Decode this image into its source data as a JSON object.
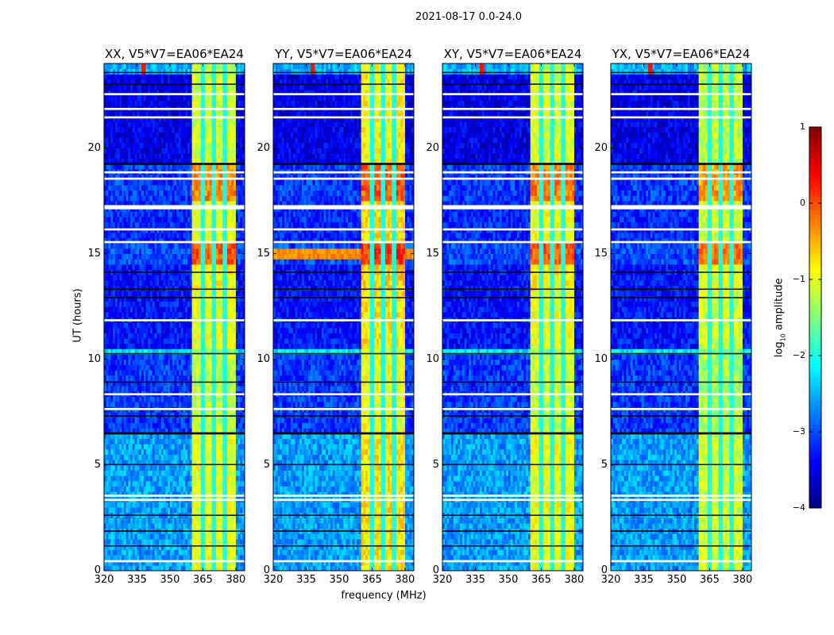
{
  "suptitle": "2021-08-17 0.0-24.0",
  "chart_data": {
    "type": "heatmap",
    "title": "2021-08-17 0.0-24.0",
    "xlabel": "frequency (MHz)",
    "ylabel": "UT (hours)",
    "xlim": [
      320,
      384
    ],
    "ylim": [
      0,
      24
    ],
    "xticks": [
      "320",
      "335",
      "350",
      "365",
      "380"
    ],
    "yticks": [
      "0",
      "5",
      "10",
      "15",
      "20"
    ],
    "xtick_values": [
      320,
      335,
      350,
      365,
      380
    ],
    "ytick_values": [
      0,
      5,
      10,
      15,
      20
    ],
    "colormap": "jet",
    "colorbar": {
      "label": "log10 amplitude",
      "label_main": "log",
      "label_sub": "10",
      "label_rest": " amplitude",
      "range": [
        -4,
        1
      ],
      "ticks": [
        "1",
        "0",
        "−1",
        "−2",
        "−3",
        "−4"
      ],
      "tick_values": [
        1,
        0,
        -1,
        -2,
        -3,
        -4
      ]
    },
    "band": {
      "f0": 360.4,
      "f1": 379.6,
      "dividers_mhz": [
        365,
        370,
        375
      ],
      "divider_level": -2.0
    },
    "segments_ut_bg_band": [
      [
        0,
        6.5,
        -2.6,
        -1.0
      ],
      [
        6.5,
        10.3,
        -3.1,
        -1.2
      ],
      [
        10.3,
        10.6,
        -2.2,
        -1.4
      ],
      [
        10.6,
        13.3,
        -3.3,
        -1.0
      ],
      [
        13.3,
        14.6,
        -3.3,
        -0.9
      ],
      [
        14.6,
        15.6,
        -3.0,
        -0.1
      ],
      [
        15.6,
        17.5,
        -3.2,
        -1.0
      ],
      [
        17.5,
        19.2,
        -3.1,
        -0.3
      ],
      [
        19.2,
        23.6,
        -3.5,
        -1.1
      ],
      [
        23.6,
        24,
        -2.5,
        -1.2
      ]
    ],
    "flagged_rows_ut": [
      [
        0.4,
        0.5
      ],
      [
        3.3,
        3.4
      ],
      [
        3.5,
        3.6
      ],
      [
        7.6,
        7.7
      ],
      [
        8.3,
        8.4
      ],
      [
        11.8,
        11.9
      ],
      [
        15.5,
        15.6
      ],
      [
        16.1,
        16.2
      ],
      [
        17.1,
        17.3
      ],
      [
        18.5,
        18.6
      ],
      [
        18.8,
        18.9
      ],
      [
        21.4,
        21.5
      ],
      [
        21.8,
        21.9
      ],
      [
        22.5,
        22.6
      ]
    ],
    "gap_rows_ut": [
      [
        1.15,
        1.2
      ],
      [
        1.85,
        1.9
      ],
      [
        2.6,
        2.65
      ],
      [
        5.0,
        5.05
      ],
      [
        6.45,
        6.55
      ],
      [
        7.3,
        7.35
      ],
      [
        8.9,
        8.95
      ],
      [
        10.25,
        10.3
      ],
      [
        12.9,
        12.95
      ],
      [
        13.3,
        13.35
      ],
      [
        14.1,
        14.15
      ],
      [
        19.2,
        19.3
      ],
      [
        23.0,
        23.05
      ],
      [
        23.55,
        23.6
      ]
    ],
    "panels": [
      {
        "title": "XX, V5*V7=EA06*EA24",
        "band_offset": 0.0,
        "hot_rows": []
      },
      {
        "title": "YY, V5*V7=EA06*EA24",
        "band_offset": 0.25,
        "hot_rows": [
          [
            14.8,
            15.3,
            -0.3
          ]
        ]
      },
      {
        "title": "XY, V5*V7=EA06*EA24",
        "band_offset": 0.05,
        "hot_rows": []
      },
      {
        "title": "YX, V5*V7=EA06*EA24",
        "band_offset": -0.1,
        "hot_rows": []
      }
    ]
  }
}
